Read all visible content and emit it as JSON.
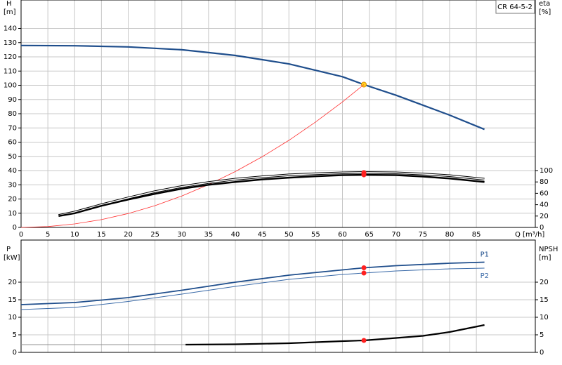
{
  "chart_data": [
    {
      "type": "line",
      "title": "CR 64-5-2",
      "y_label": "H",
      "y_unit": "[m]",
      "y2_label": "eta",
      "y2_unit": "[%]",
      "x_label": "Q [m³/h]",
      "xlim": [
        0,
        96
      ],
      "xticks": [
        0,
        5,
        10,
        15,
        20,
        25,
        30,
        35,
        40,
        45,
        50,
        55,
        60,
        65,
        70,
        75,
        80,
        85
      ],
      "show_x_tick_labels": true,
      "ylim": [
        0,
        160
      ],
      "yticks": [
        0,
        10,
        20,
        30,
        40,
        50,
        60,
        70,
        80,
        90,
        100,
        110,
        120,
        130,
        140
      ],
      "y2lim": [
        0,
        400
      ],
      "y2ticks": [
        0,
        20,
        40,
        60,
        80,
        100
      ],
      "grid": true,
      "series": [
        {
          "color": "#1f4e8c",
          "width": 2.2,
          "x": [
            0,
            10,
            20,
            30,
            35,
            40,
            45,
            50,
            55,
            60,
            64,
            70,
            75,
            80,
            86.5
          ],
          "values": [
            128,
            127.8,
            127,
            125,
            123,
            121,
            118,
            115,
            110.5,
            106,
            100.5,
            93,
            86,
            79,
            69
          ],
          "point": {
            "x": 64,
            "y": 100.5,
            "color": "#ffd21f"
          }
        },
        {
          "color": "#ff3030",
          "width": 0.8,
          "x": [
            0,
            5,
            10,
            15,
            20,
            25,
            30,
            35,
            40,
            45,
            50,
            55,
            60,
            64
          ],
          "values": [
            0,
            0.6,
            2.45,
            5.5,
            9.8,
            15.3,
            22.1,
            30.1,
            39.3,
            49.7,
            61.3,
            74.2,
            88.3,
            100.5
          ]
        },
        {
          "color": "#000000",
          "width": 1,
          "line_style": "double",
          "axis": "y2",
          "x": [
            7,
            10,
            15,
            20,
            25,
            30,
            35,
            40,
            45,
            50,
            55,
            60,
            64,
            70,
            75,
            80,
            86.5
          ],
          "values": [
            21,
            27,
            40,
            52,
            63,
            72,
            79,
            85,
            89,
            92.5,
            94.5,
            96,
            96.5,
            96,
            94,
            91,
            85
          ],
          "point": {
            "x": 64,
            "y": 96.5,
            "color": "#ff2020"
          }
        },
        {
          "color": "#000000",
          "width": 2.5,
          "axis": "y2",
          "x": [
            7,
            10,
            15,
            20,
            25,
            30,
            35,
            40,
            45,
            50,
            55,
            60,
            64,
            70,
            75,
            80,
            86.5
          ],
          "values": [
            20,
            25,
            38,
            49,
            59,
            68,
            75,
            80,
            84.5,
            87.5,
            90,
            92,
            92.5,
            92,
            89.5,
            86,
            80
          ],
          "point": {
            "x": 64,
            "y": 92.5,
            "color": "#ff2020"
          }
        }
      ]
    },
    {
      "type": "line",
      "y_label": "P",
      "y_unit": "[kW]",
      "y2_label": "NPSH",
      "y2_unit": "[m]",
      "xlim": [
        0,
        96
      ],
      "xticks": [
        0,
        5,
        10,
        15,
        20,
        25,
        30,
        35,
        40,
        45,
        50,
        55,
        60,
        65,
        70,
        75,
        80,
        85
      ],
      "show_x_tick_labels": false,
      "ylim": [
        0,
        32
      ],
      "yticks": [
        0,
        5,
        10,
        15,
        20
      ],
      "y2lim": [
        0,
        32
      ],
      "y2ticks": [
        0,
        5,
        10,
        15,
        20
      ],
      "grid": true,
      "series": [
        {
          "name": "P1",
          "label_side": "above",
          "color": "#1f4e8c",
          "width": 1.8,
          "x": [
            0,
            10,
            20,
            30,
            40,
            50,
            60,
            64,
            70,
            80,
            86.5
          ],
          "values": [
            13.6,
            14.2,
            15.6,
            17.7,
            20,
            22,
            23.5,
            24.1,
            24.7,
            25.4,
            25.7
          ],
          "point": {
            "x": 64,
            "y": 24.1,
            "color": "#ff2020"
          }
        },
        {
          "name": "P2",
          "label_side": "below",
          "color": "#3a6aa8",
          "width": 1,
          "x": [
            0,
            10,
            20,
            30,
            40,
            50,
            60,
            64,
            70,
            80,
            86.5
          ],
          "values": [
            12.2,
            12.8,
            14.5,
            16.6,
            18.8,
            20.8,
            22.2,
            22.6,
            23.2,
            23.8,
            24
          ],
          "point": {
            "x": 64,
            "y": 22.6,
            "color": "#ff2020"
          }
        },
        {
          "color": "#909090",
          "width": 1,
          "axis": "y2",
          "x": [
            0,
            30.7
          ],
          "values": [
            2.2,
            2.2
          ]
        },
        {
          "color": "#000000",
          "width": 2.2,
          "axis": "y2",
          "x": [
            30.7,
            40,
            50,
            60,
            64,
            70,
            75,
            80,
            86.5
          ],
          "values": [
            2.2,
            2.3,
            2.6,
            3.2,
            3.4,
            4.1,
            4.7,
            5.8,
            7.8
          ],
          "point": {
            "x": 64,
            "y": 3.4,
            "color": "#ff2020"
          }
        }
      ]
    }
  ]
}
